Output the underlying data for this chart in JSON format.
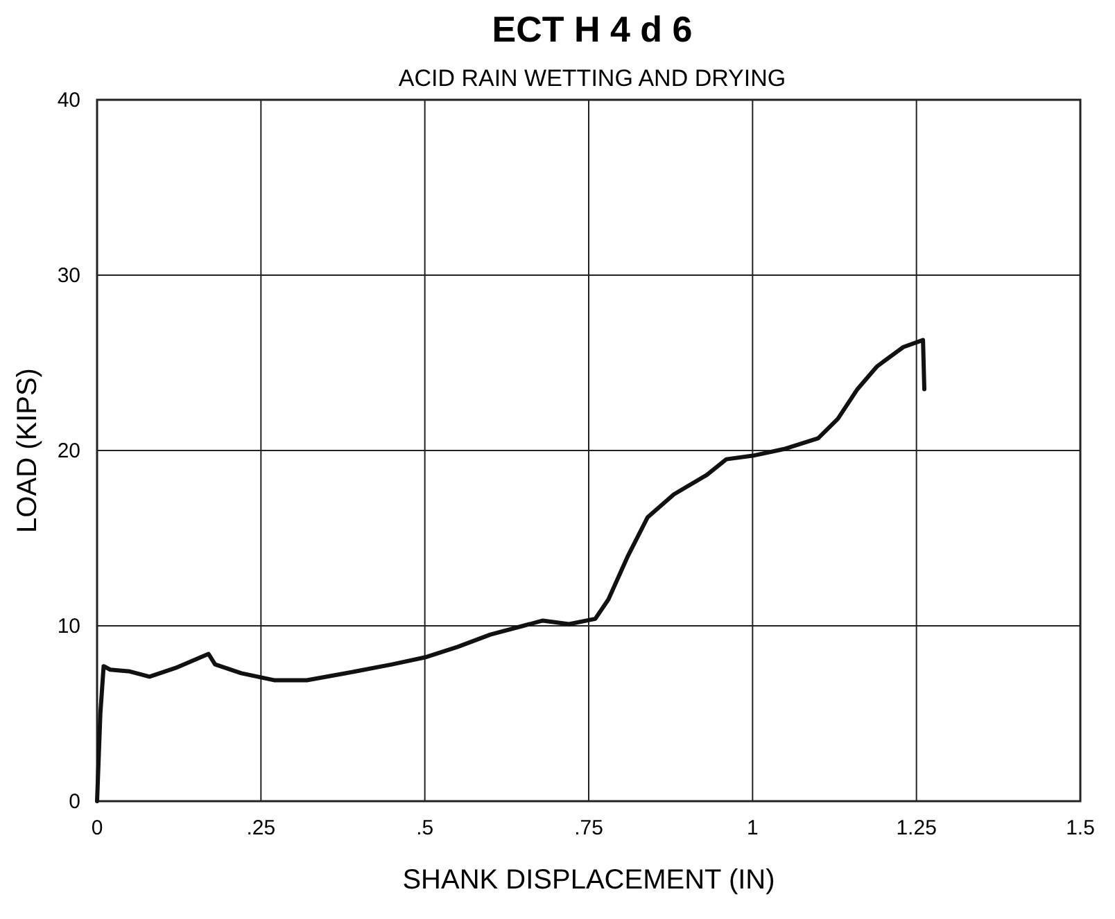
{
  "chart_data": {
    "type": "line",
    "title": "ECT H 4 d 6",
    "subtitle": "ACID RAIN WETTING AND DRYING",
    "xlabel": "SHANK DISPLACEMENT (IN)",
    "ylabel": "LOAD (KIPS)",
    "xlim": [
      0,
      1.5
    ],
    "xticks": [
      {
        "value": 0,
        "label": "0"
      },
      {
        "value": 0.25,
        "label": ".25"
      },
      {
        "value": 0.5,
        "label": ".5"
      },
      {
        "value": 0.75,
        "label": ".75"
      },
      {
        "value": 1,
        "label": "1"
      },
      {
        "value": 1.25,
        "label": "1.25"
      },
      {
        "value": 1.5,
        "label": "1.5"
      }
    ],
    "ylim": [
      0,
      40
    ],
    "yticks": [
      0,
      10,
      20,
      30,
      40
    ],
    "grid": true,
    "marker": "none",
    "line_style": "solid",
    "series": [
      {
        "color": "#111111",
        "x": [
          0,
          0.005,
          0.01,
          0.02,
          0.05,
          0.08,
          0.12,
          0.17,
          0.18,
          0.22,
          0.27,
          0.32,
          0.38,
          0.45,
          0.5,
          0.55,
          0.6,
          0.65,
          0.68,
          0.72,
          0.76,
          0.78,
          0.81,
          0.84,
          0.88,
          0.93,
          0.96,
          1.0,
          1.05,
          1.1,
          1.13,
          1.16,
          1.19,
          1.23,
          1.26,
          1.262
        ],
        "values": [
          0,
          5,
          7.7,
          7.5,
          7.4,
          7.1,
          7.6,
          8.4,
          7.8,
          7.3,
          6.9,
          6.9,
          7.3,
          7.8,
          8.2,
          8.8,
          9.5,
          10.0,
          10.3,
          10.1,
          10.4,
          11.5,
          14.0,
          16.2,
          17.5,
          18.6,
          19.5,
          19.7,
          20.1,
          20.7,
          21.8,
          23.5,
          24.8,
          25.9,
          26.3,
          23.5
        ]
      }
    ]
  }
}
